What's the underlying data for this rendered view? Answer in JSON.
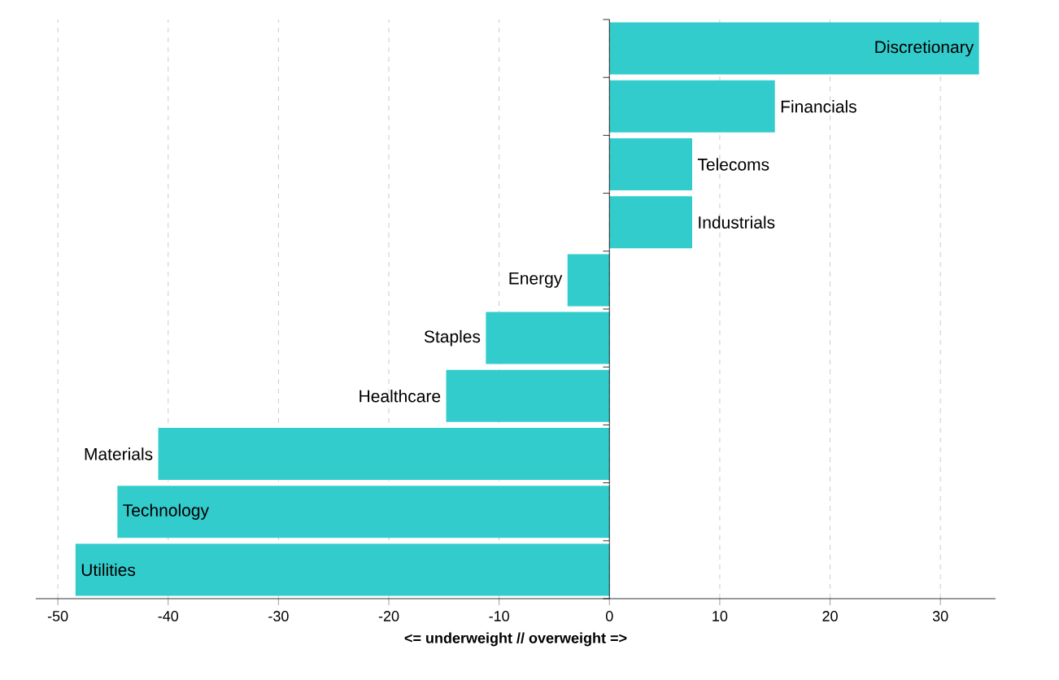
{
  "chart_data": {
    "type": "bar",
    "orientation": "horizontal",
    "categories": [
      "Discretionary",
      "Financials",
      "Telecoms",
      "Industrials",
      "Energy",
      "Staples",
      "Healthcare",
      "Materials",
      "Technology",
      "Utilities"
    ],
    "values": [
      33.5,
      15,
      7.5,
      7.5,
      -3.8,
      -11.2,
      -14.8,
      -40.9,
      -44.6,
      -48.4
    ],
    "color": "#33cccc",
    "xlabel": "<= underweight // overweight =>",
    "xlim": [
      -52,
      35
    ],
    "xticks": [
      -50,
      -40,
      -30,
      -20,
      -10,
      0,
      10,
      20,
      30
    ],
    "grid": "x"
  }
}
